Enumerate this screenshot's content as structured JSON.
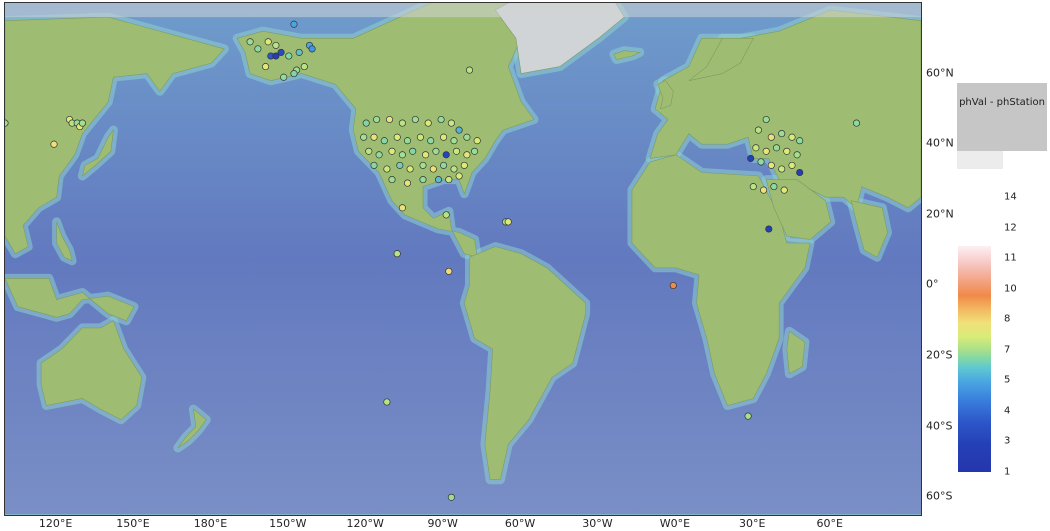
{
  "map": {
    "lon_labels": [
      "120°E",
      "150°E",
      "180°E",
      "150°W",
      "120°W",
      "90°W",
      "60°W",
      "30°W",
      "W0°E",
      "30°E",
      "60°E"
    ],
    "lat_labels": [
      "60°N",
      "40°N",
      "20°N",
      "0°",
      "20°S",
      "40°S",
      "60°S"
    ],
    "lat_values": [
      60,
      40,
      20,
      0,
      -20,
      -40,
      -60
    ],
    "lon_values": [
      120,
      150,
      180,
      210,
      240,
      270,
      300,
      330,
      360,
      390,
      420
    ],
    "view": {
      "lon_min": 100,
      "lon_max": 455,
      "lat_max": 80,
      "lat_min": -65
    },
    "ocean_color": "#6f86c6",
    "land_color": "#9fbd72",
    "ice_color": "#d0d4d6",
    "stations": [
      {
        "lon": 212,
        "lat": 74,
        "ph": 6.0
      },
      {
        "lon": 195,
        "lat": 69,
        "ph": 7.5
      },
      {
        "lon": 198,
        "lat": 67,
        "ph": 7.2
      },
      {
        "lon": 202,
        "lat": 69,
        "ph": 8.0
      },
      {
        "lon": 205,
        "lat": 68,
        "ph": 7.8
      },
      {
        "lon": 207,
        "lat": 66,
        "ph": 3.5
      },
      {
        "lon": 203,
        "lat": 65,
        "ph": 4.0
      },
      {
        "lon": 205,
        "lat": 65,
        "ph": 2.5
      },
      {
        "lon": 210,
        "lat": 65,
        "ph": 7.0
      },
      {
        "lon": 214,
        "lat": 66,
        "ph": 6.5
      },
      {
        "lon": 218,
        "lat": 68,
        "ph": 6.0
      },
      {
        "lon": 219,
        "lat": 67,
        "ph": 5.5
      },
      {
        "lon": 213,
        "lat": 61,
        "ph": 7.5
      },
      {
        "lon": 216,
        "lat": 62,
        "ph": 7.8
      },
      {
        "lon": 201,
        "lat": 62,
        "ph": 8.2
      },
      {
        "lon": 208,
        "lat": 59,
        "ph": 7.3
      },
      {
        "lon": 212,
        "lat": 60,
        "ph": 7.0
      },
      {
        "lon": 280,
        "lat": 61,
        "ph": 7.8
      },
      {
        "lon": 100,
        "lat": 46,
        "ph": 7.5
      },
      {
        "lon": 125,
        "lat": 47,
        "ph": 8.0
      },
      {
        "lon": 126,
        "lat": 46,
        "ph": 7.8
      },
      {
        "lon": 128,
        "lat": 46,
        "ph": 7.5
      },
      {
        "lon": 129,
        "lat": 45,
        "ph": 8.2
      },
      {
        "lon": 130,
        "lat": 46,
        "ph": 7.6
      },
      {
        "lon": 119,
        "lat": 40,
        "ph": 8.5
      },
      {
        "lon": 395,
        "lat": 47,
        "ph": 7.4
      },
      {
        "lon": 430,
        "lat": 46,
        "ph": 7.2
      },
      {
        "lon": 240,
        "lat": 46,
        "ph": 7.0
      },
      {
        "lon": 244,
        "lat": 47,
        "ph": 7.5
      },
      {
        "lon": 249,
        "lat": 47,
        "ph": 8.2
      },
      {
        "lon": 254,
        "lat": 46,
        "ph": 7.8
      },
      {
        "lon": 259,
        "lat": 47,
        "ph": 7.5
      },
      {
        "lon": 264,
        "lat": 46,
        "ph": 8.0
      },
      {
        "lon": 269,
        "lat": 47,
        "ph": 7.3
      },
      {
        "lon": 273,
        "lat": 46,
        "ph": 7.9
      },
      {
        "lon": 276,
        "lat": 44,
        "ph": 6.2
      },
      {
        "lon": 239,
        "lat": 42,
        "ph": 7.6
      },
      {
        "lon": 243,
        "lat": 42,
        "ph": 8.3
      },
      {
        "lon": 247,
        "lat": 41,
        "ph": 7.1
      },
      {
        "lon": 252,
        "lat": 42,
        "ph": 8.0
      },
      {
        "lon": 256,
        "lat": 41,
        "ph": 7.4
      },
      {
        "lon": 261,
        "lat": 42,
        "ph": 7.9
      },
      {
        "lon": 265,
        "lat": 41,
        "ph": 7.2
      },
      {
        "lon": 270,
        "lat": 42,
        "ph": 8.1
      },
      {
        "lon": 274,
        "lat": 41,
        "ph": 7.6
      },
      {
        "lon": 279,
        "lat": 42,
        "ph": 7.5
      },
      {
        "lon": 283,
        "lat": 41,
        "ph": 8.0
      },
      {
        "lon": 241,
        "lat": 38,
        "ph": 7.8
      },
      {
        "lon": 245,
        "lat": 37,
        "ph": 7.3
      },
      {
        "lon": 250,
        "lat": 38,
        "ph": 8.1
      },
      {
        "lon": 254,
        "lat": 37,
        "ph": 7.6
      },
      {
        "lon": 258,
        "lat": 38,
        "ph": 7.0
      },
      {
        "lon": 263,
        "lat": 37,
        "ph": 8.3
      },
      {
        "lon": 267,
        "lat": 38,
        "ph": 7.5
      },
      {
        "lon": 271,
        "lat": 37,
        "ph": 3.2
      },
      {
        "lon": 275,
        "lat": 38,
        "ph": 7.9
      },
      {
        "lon": 279,
        "lat": 37,
        "ph": 8.2
      },
      {
        "lon": 282,
        "lat": 38,
        "ph": 7.4
      },
      {
        "lon": 243,
        "lat": 34,
        "ph": 7.1
      },
      {
        "lon": 248,
        "lat": 33,
        "ph": 7.9
      },
      {
        "lon": 253,
        "lat": 34,
        "ph": 6.8
      },
      {
        "lon": 257,
        "lat": 33,
        "ph": 8.0
      },
      {
        "lon": 262,
        "lat": 34,
        "ph": 7.6
      },
      {
        "lon": 266,
        "lat": 33,
        "ph": 8.4
      },
      {
        "lon": 270,
        "lat": 34,
        "ph": 7.2
      },
      {
        "lon": 274,
        "lat": 33,
        "ph": 7.8
      },
      {
        "lon": 278,
        "lat": 34,
        "ph": 8.1
      },
      {
        "lon": 250,
        "lat": 30,
        "ph": 7.5
      },
      {
        "lon": 256,
        "lat": 29,
        "ph": 8.2
      },
      {
        "lon": 262,
        "lat": 30,
        "ph": 7.3
      },
      {
        "lon": 268,
        "lat": 30,
        "ph": 6.4
      },
      {
        "lon": 272,
        "lat": 30,
        "ph": 7.9
      },
      {
        "lon": 276,
        "lat": 31,
        "ph": 8.0
      },
      {
        "lon": 254,
        "lat": 22,
        "ph": 8.4
      },
      {
        "lon": 271,
        "lat": 20,
        "ph": 7.8
      },
      {
        "lon": 294,
        "lat": 18,
        "ph": 7.6
      },
      {
        "lon": 295,
        "lat": 18,
        "ph": 8.1
      },
      {
        "lon": 252,
        "lat": 9,
        "ph": 7.8
      },
      {
        "lon": 272,
        "lat": 4,
        "ph": 8.6
      },
      {
        "lon": 359,
        "lat": 0,
        "ph": 10.0
      },
      {
        "lon": 248,
        "lat": -33,
        "ph": 7.8
      },
      {
        "lon": 273,
        "lat": -60,
        "ph": 7.5
      },
      {
        "lon": 388,
        "lat": -37,
        "ph": 7.7
      },
      {
        "lon": 392,
        "lat": 44,
        "ph": 7.8
      },
      {
        "lon": 397,
        "lat": 42,
        "ph": 8.4
      },
      {
        "lon": 401,
        "lat": 43,
        "ph": 7.5
      },
      {
        "lon": 405,
        "lat": 42,
        "ph": 8.0
      },
      {
        "lon": 408,
        "lat": 41,
        "ph": 7.2
      },
      {
        "lon": 391,
        "lat": 39,
        "ph": 7.9
      },
      {
        "lon": 395,
        "lat": 38,
        "ph": 8.3
      },
      {
        "lon": 399,
        "lat": 39,
        "ph": 7.4
      },
      {
        "lon": 403,
        "lat": 38,
        "ph": 8.1
      },
      {
        "lon": 407,
        "lat": 37,
        "ph": 7.6
      },
      {
        "lon": 389,
        "lat": 36,
        "ph": 3.0
      },
      {
        "lon": 393,
        "lat": 35,
        "ph": 7.3
      },
      {
        "lon": 397,
        "lat": 34,
        "ph": 8.2
      },
      {
        "lon": 401,
        "lat": 33,
        "ph": 7.9
      },
      {
        "lon": 405,
        "lat": 34,
        "ph": 8.0
      },
      {
        "lon": 408,
        "lat": 32,
        "ph": 2.5
      },
      {
        "lon": 390,
        "lat": 28,
        "ph": 7.8
      },
      {
        "lon": 394,
        "lat": 27,
        "ph": 8.4
      },
      {
        "lon": 398,
        "lat": 28,
        "ph": 7.2
      },
      {
        "lon": 402,
        "lat": 27,
        "ph": 8.1
      },
      {
        "lon": 396,
        "lat": 16,
        "ph": 2.8
      }
    ]
  },
  "legend": {
    "title": "phVal - phStation",
    "labels": [
      "14",
      "12",
      "11",
      "10",
      "8",
      "7",
      "5",
      "4",
      "3",
      "1"
    ],
    "colors": {
      "high": "#fdf0f2",
      "mid_orange": "#f08a48",
      "mid_yellow": "#f1e07a",
      "mid_cyan": "#5fc8d0",
      "low": "#2536ab"
    }
  }
}
